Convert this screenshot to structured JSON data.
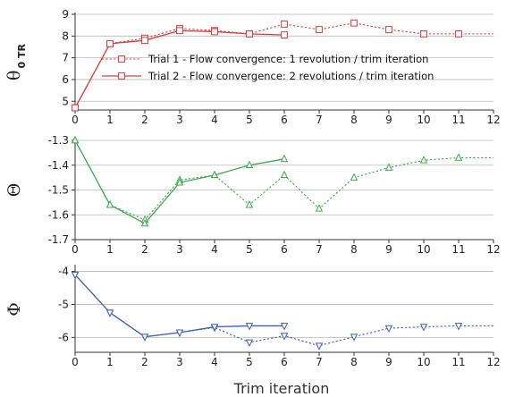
{
  "chart_data": [
    {
      "type": "line",
      "ylabel": "θ",
      "ylabel_sub": "0 TR",
      "xlabel": "",
      "xlim": [
        0,
        12
      ],
      "ylim": [
        4.6,
        9
      ],
      "yticks": [
        5,
        6,
        7,
        8,
        9
      ],
      "xticks": [
        0,
        1,
        2,
        3,
        4,
        5,
        6,
        7,
        8,
        9,
        10,
        11,
        12
      ],
      "grid": true,
      "legend_position": "center-right",
      "color": "#d93a3a",
      "marker": "square",
      "series": [
        {
          "name": "Trial 1 -  Flow convergence: 1 revolution / trim iteration",
          "dash": "dotted",
          "x": [
            0,
            1,
            2,
            3,
            4,
            5,
            6,
            7,
            8,
            9,
            10,
            11,
            12
          ],
          "y": [
            4.7,
            7.65,
            7.9,
            8.35,
            8.25,
            8.1,
            8.55,
            8.3,
            8.6,
            8.3,
            8.1,
            8.1,
            8.1
          ]
        },
        {
          "name": "Trial 2 -  Flow convergence: 2 revolutions / trim iteration",
          "dash": "solid",
          "x": [
            0,
            1,
            2,
            3,
            4,
            5,
            6
          ],
          "y": [
            4.7,
            7.65,
            7.8,
            8.25,
            8.2,
            8.1,
            8.05
          ]
        }
      ]
    },
    {
      "type": "line",
      "ylabel": "Θ",
      "xlabel": "",
      "xlim": [
        0,
        12
      ],
      "ylim": [
        -1.7,
        -1.3
      ],
      "yticks": [
        -1.3,
        -1.4,
        -1.5,
        -1.6,
        -1.7
      ],
      "xticks": [
        0,
        1,
        2,
        3,
        4,
        5,
        6,
        7,
        8,
        9,
        10,
        11,
        12
      ],
      "grid": true,
      "color": "#3aaa4a",
      "marker": "triangle-up",
      "series": [
        {
          "dash": "dotted",
          "x": [
            0,
            1,
            2,
            3,
            4,
            5,
            6,
            7,
            8,
            9,
            10,
            11,
            12
          ],
          "y": [
            -1.3,
            -1.56,
            -1.62,
            -1.46,
            -1.44,
            -1.56,
            -1.44,
            -1.575,
            -1.45,
            -1.41,
            -1.38,
            -1.37,
            -1.37
          ]
        },
        {
          "dash": "solid",
          "x": [
            0,
            1,
            2,
            3,
            4,
            5,
            6
          ],
          "y": [
            -1.3,
            -1.56,
            -1.635,
            -1.47,
            -1.44,
            -1.4,
            -1.375
          ]
        }
      ]
    },
    {
      "type": "line",
      "ylabel": "Φ",
      "xlabel": "Trim iteration",
      "xlim": [
        0,
        12
      ],
      "ylim": [
        -6.45,
        -3.85
      ],
      "yticks": [
        -4,
        -5,
        -6
      ],
      "xticks": [
        0,
        1,
        2,
        3,
        4,
        5,
        6,
        7,
        8,
        9,
        10,
        11,
        12
      ],
      "grid": true,
      "color": "#3a5fc0",
      "marker": "triangle-down",
      "series": [
        {
          "dash": "dotted",
          "x": [
            0,
            1,
            2,
            3,
            4,
            5,
            6,
            7,
            8,
            9,
            10,
            11,
            12
          ],
          "y": [
            -4.1,
            -5.25,
            -5.98,
            -5.85,
            -5.7,
            -6.15,
            -5.95,
            -6.25,
            -5.98,
            -5.72,
            -5.68,
            -5.65,
            -5.65
          ]
        },
        {
          "dash": "solid",
          "x": [
            0,
            1,
            2,
            3,
            4,
            5,
            6
          ],
          "y": [
            -4.1,
            -5.25,
            -5.98,
            -5.85,
            -5.68,
            -5.65,
            -5.65
          ]
        }
      ]
    }
  ]
}
